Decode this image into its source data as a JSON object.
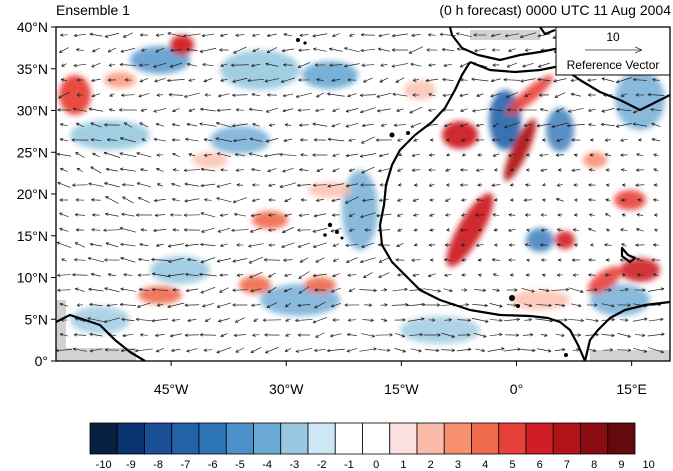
{
  "header": {
    "left_title": "Ensemble 1",
    "right_title": "(0 h forecast) 0000 UTC 11 Aug 2004"
  },
  "map": {
    "lat_labels": [
      "40°N",
      "35°N",
      "30°N",
      "25°N",
      "20°N",
      "15°N",
      "10°N",
      "5°N",
      "0°"
    ],
    "lon_labels": [
      "45°W",
      "30°W",
      "15°W",
      "0°",
      "15°E"
    ],
    "lat_range": [
      0,
      40
    ],
    "lon_range": [
      -60,
      20
    ],
    "coastline_color": "#000000",
    "reference_vector": {
      "magnitude_label": "10",
      "caption": "Reference Vector"
    }
  },
  "colorbar": {
    "levels": [
      "-10",
      "-9",
      "-8",
      "-7",
      "-6",
      "-5",
      "-4",
      "-3",
      "-2",
      "-1",
      "0",
      "1",
      "2",
      "3",
      "4",
      "5",
      "6",
      "7",
      "8",
      "9",
      "10"
    ],
    "colors": [
      "#08203f",
      "#0a3370",
      "#1a4f95",
      "#2462a8",
      "#2e76b8",
      "#4b90c8",
      "#6aa9d3",
      "#98c9e0",
      "#cde8f4",
      "#ffffff",
      "#ffffff",
      "#fde0e0",
      "#fbbbaa",
      "#f7906f",
      "#f06a4e",
      "#e8413a",
      "#cf1e25",
      "#b21419",
      "#8c0c14",
      "#640a0f"
    ]
  }
}
